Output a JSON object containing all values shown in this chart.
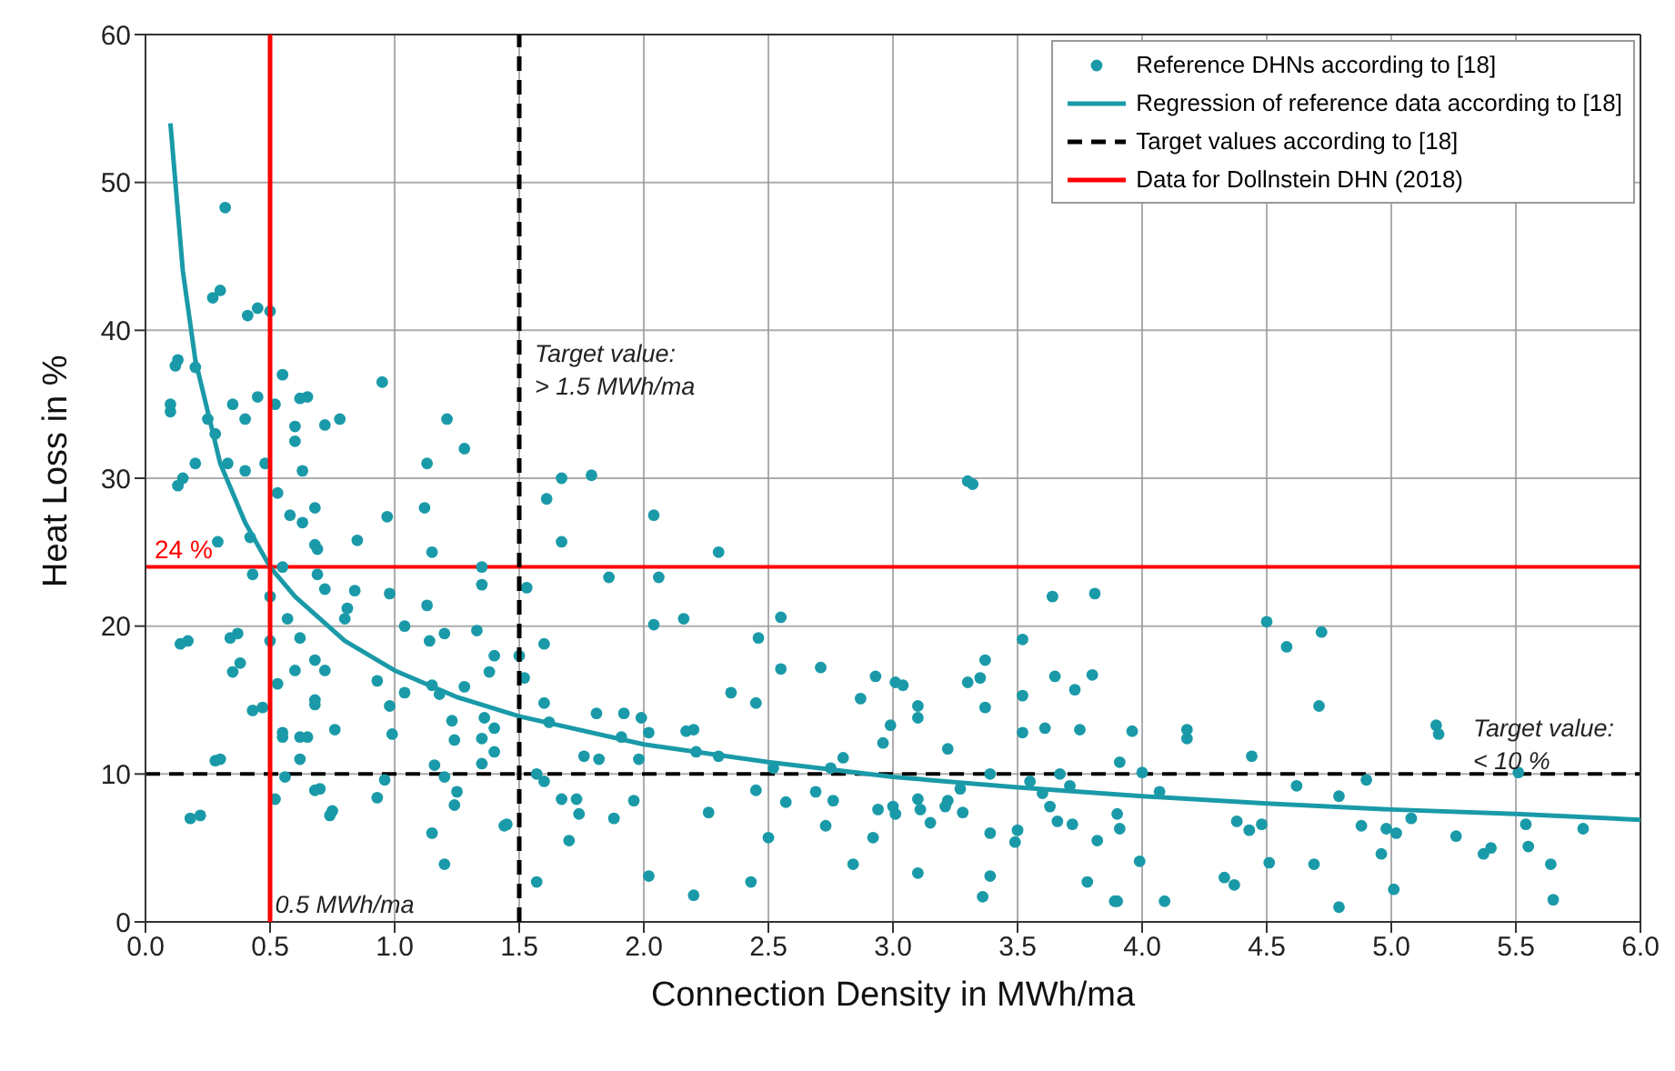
{
  "chart_data": {
    "type": "scatter",
    "xlabel": "Connection Density in MWh/ma",
    "ylabel": "Heat Loss in %",
    "xlim": [
      0,
      6
    ],
    "ylim": [
      0,
      60
    ],
    "xticks": [
      {
        "value": 0,
        "label": "0.0"
      },
      0.5,
      {
        "value": 1,
        "label": "1.0"
      },
      1.5,
      {
        "value": 2,
        "label": "2.0"
      },
      2.5,
      {
        "value": 3,
        "label": "3.0"
      },
      3.5,
      {
        "value": 4,
        "label": "4.0"
      },
      4.5,
      {
        "value": 5,
        "label": "5.0"
      },
      5.5,
      {
        "value": 6,
        "label": "6.0"
      }
    ],
    "yticks": [
      0,
      10,
      20,
      30,
      40,
      50,
      60
    ],
    "grid": true,
    "legend": "top right",
    "marker": "circle",
    "series": [
      {
        "name": "Reference DHNs according to [18]",
        "color": "#1a9aa8",
        "x": [
          0.1,
          0.1,
          0.13,
          0.15,
          0.17,
          0.2,
          0.2,
          0.22,
          0.25,
          0.28,
          0.3,
          0.3,
          0.32,
          0.33,
          0.35,
          0.37,
          0.38,
          0.4,
          0.4,
          0.42,
          0.43,
          0.45,
          0.45,
          0.47,
          0.48,
          0.5,
          0.5,
          0.5,
          0.52,
          0.53,
          0.55,
          0.55,
          0.55,
          0.52,
          0.57,
          0.58,
          0.6,
          0.6,
          0.62,
          0.63,
          0.63,
          0.65,
          0.65,
          0.68,
          0.68,
          0.7,
          0.72,
          0.72,
          0.75,
          0.78,
          0.8,
          0.95,
          1.21,
          1.28,
          1.13,
          1.12,
          0.97,
          1.15,
          0.85,
          1.35,
          1.67,
          1.61,
          1.67,
          1.53,
          1.6,
          1.5,
          1.52,
          1.6,
          1.62,
          1.57,
          1.6,
          1.67,
          1.7,
          1.57,
          1.45,
          1.35,
          1.13,
          0.98,
          0.84,
          0.81,
          1.04,
          1.14,
          1.2,
          1.33,
          0.93,
          1.04,
          1.15,
          1.28,
          1.38,
          1.4,
          0.98,
          1.18,
          1.23,
          1.36,
          1.24,
          0.99,
          1.35,
          1.4,
          1.4,
          1.16,
          1.2,
          1.35,
          0.96,
          0.93,
          1.25,
          1.24,
          1.15,
          1.2,
          1.44,
          0.55,
          0.68,
          0.56,
          0.68,
          0.74,
          0.18,
          0.28,
          0.43,
          0.34,
          0.14,
          0.35,
          0.53,
          0.62,
          0.68,
          0.76,
          0.62,
          0.72,
          0.62,
          0.6,
          0.68,
          0.69,
          0.69,
          0.29,
          0.13,
          0.41,
          0.27,
          0.12,
          1.79,
          2.04,
          2.3,
          1.86,
          2.06,
          2.04,
          2.16,
          2.46,
          2.55,
          2.55,
          2.71,
          2.35,
          2.45,
          2.87,
          2.93,
          3.01,
          3.04,
          3.3,
          3.35,
          3.37,
          3.3,
          3.32,
          3.52,
          3.64,
          3.81,
          3.65,
          3.73,
          3.8,
          3.52,
          3.37,
          3.1,
          3.1,
          2.99,
          2.96,
          2.8,
          2.75,
          3.22,
          3.52,
          3.61,
          3.75,
          3.67,
          3.39,
          1.81,
          1.92,
          1.99,
          2.02,
          1.91,
          1.76,
          1.82,
          1.98,
          2.17,
          2.2,
          2.21,
          2.3,
          2.52,
          1.73,
          1.74,
          1.88,
          1.96,
          2.26,
          2.45,
          2.57,
          2.69,
          2.73,
          2.76,
          2.5,
          2.84,
          2.92,
          2.94,
          3.0,
          3.01,
          3.1,
          3.11,
          3.15,
          3.21,
          3.22,
          3.28,
          3.27,
          3.39,
          3.49,
          3.5,
          3.6,
          3.63,
          3.66,
          3.72,
          3.71,
          3.55,
          3.82,
          2.02,
          2.2,
          2.43,
          3.1,
          3.36,
          3.39,
          3.78,
          3.89,
          4.5,
          4.58,
          4.72,
          4.71,
          3.96,
          4.18,
          4.18,
          3.91,
          4.44,
          5.18,
          5.19,
          4.0,
          5.51,
          4.07,
          4.62,
          4.79,
          4.9,
          3.9,
          3.91,
          4.38,
          4.43,
          4.48,
          4.88,
          4.98,
          5.02,
          5.08,
          5.26,
          5.37,
          5.4,
          5.54,
          5.55,
          5.77,
          3.99,
          4.33,
          4.37,
          4.51,
          4.69,
          4.96,
          5.01,
          3.9,
          4.09,
          4.79,
          5.64,
          5.65
        ],
        "values": [
          34.5,
          35,
          38,
          30,
          19,
          37.5,
          31,
          7.2,
          34,
          33,
          11,
          42.7,
          48.3,
          31,
          35,
          19.5,
          17.5,
          34,
          30.5,
          26,
          23.5,
          41.5,
          35.5,
          14.5,
          31,
          41.3,
          22,
          19,
          35,
          29,
          37,
          24,
          12.5,
          8.3,
          20.5,
          27.5,
          33.5,
          17,
          11,
          27,
          30.5,
          35.5,
          12.5,
          25.5,
          15,
          9,
          22.5,
          17,
          7.5,
          34,
          20.5,
          36.5,
          34,
          32,
          31,
          28,
          27.4,
          25,
          25.8,
          24,
          30,
          28.6,
          25.7,
          22.6,
          18.8,
          18,
          16.5,
          14.8,
          13.5,
          10,
          9.5,
          8.3,
          5.5,
          2.7,
          6.6,
          22.8,
          21.4,
          22.2,
          22.4,
          21.2,
          20,
          19,
          19.5,
          19.7,
          16.3,
          15.5,
          16,
          15.9,
          16.9,
          18,
          14.6,
          15.4,
          13.6,
          13.8,
          12.3,
          12.7,
          12.4,
          13.1,
          11.5,
          10.6,
          9.8,
          10.7,
          9.6,
          8.4,
          8.8,
          7.9,
          6,
          3.9,
          6.5,
          12.8,
          14.7,
          9.8,
          8.9,
          7.2,
          7,
          10.9,
          14.3,
          19.2,
          18.8,
          16.9,
          16.1,
          19.2,
          17.7,
          13,
          12.5,
          33.6,
          35.4,
          32.5,
          28,
          25.2,
          23.5,
          25.7,
          29.5,
          41,
          42.2,
          37.6,
          30.2,
          27.5,
          25,
          23.3,
          23.3,
          20.1,
          20.5,
          19.2,
          20.6,
          17.1,
          17.2,
          15.5,
          14.8,
          15.1,
          16.6,
          16.2,
          16,
          16.2,
          16.5,
          17.7,
          29.8,
          29.6,
          19.1,
          22,
          22.2,
          16.6,
          15.7,
          16.7,
          15.3,
          14.5,
          14.6,
          13.8,
          13.3,
          12.1,
          11.1,
          10.4,
          11.7,
          12.8,
          13.1,
          13,
          10,
          10,
          14.1,
          14.1,
          13.8,
          12.8,
          12.5,
          11.2,
          11,
          11,
          12.9,
          13,
          11.5,
          11.2,
          10.4,
          8.3,
          7.3,
          7,
          8.2,
          7.4,
          8.9,
          8.1,
          8.8,
          6.5,
          8.2,
          5.7,
          3.9,
          5.7,
          7.6,
          7.8,
          7.3,
          8.3,
          7.6,
          6.7,
          7.8,
          8.2,
          7.4,
          9,
          6,
          5.4,
          6.2,
          8.7,
          7.8,
          6.8,
          6.6,
          9.2,
          9.5,
          5.5,
          3.1,
          1.8,
          2.7,
          3.3,
          1.7,
          3.1,
          2.7,
          1.4,
          20.3,
          18.6,
          19.6,
          14.6,
          12.9,
          13,
          12.4,
          10.8,
          11.2,
          13.3,
          12.7,
          10.1,
          10.1,
          8.8,
          9.2,
          8.5,
          9.6,
          7.3,
          6.3,
          6.8,
          6.2,
          6.6,
          6.5,
          6.3,
          6,
          7,
          5.8,
          4.6,
          5,
          6.6,
          5.1,
          6.3,
          4.1,
          3,
          2.5,
          4,
          3.9,
          4.6,
          2.2,
          1.4,
          1.4,
          1,
          3.9,
          1.5
        ]
      },
      {
        "name": "Regression of reference data according to [18]",
        "type": "line",
        "color": "#1a9aa8",
        "marker": "none",
        "line_style": "solid",
        "x": [
          0.1,
          0.15,
          0.2,
          0.3,
          0.4,
          0.5,
          0.6,
          0.8,
          1.0,
          1.25,
          1.5,
          2,
          2.5,
          3,
          3.5,
          4,
          4.5,
          5,
          5.5,
          6
        ],
        "values": [
          54,
          44,
          38,
          31,
          27,
          24,
          22,
          19,
          17,
          15.2,
          13.9,
          12,
          10.8,
          9.8,
          9.1,
          8.5,
          8,
          7.6,
          7.3,
          6.9
        ]
      },
      {
        "name": "Target values according to [18]",
        "type": "line",
        "color": "#000000",
        "marker": "none",
        "line_style": "dashed",
        "x": [
          1.5,
          1.5
        ],
        "values": [
          0,
          60
        ]
      },
      {
        "name": "Data for Dollnstein DHN (2018)",
        "type": "line",
        "color": "#ff0000",
        "marker": "none",
        "line_style": "solid",
        "x": [
          0.5,
          0.5
        ],
        "values": [
          0,
          60
        ]
      }
    ],
    "ref_lines": [
      {
        "axis": "y",
        "value": 10,
        "color": "#000000",
        "line_style": "dashed"
      },
      {
        "axis": "y",
        "value": 24,
        "color": "#ff0000",
        "line_style": "solid",
        "label": "24 %"
      }
    ],
    "annotations": [
      "Target value:\n> 1.5 MWh/ma",
      "Target value:\n< 10 %",
      {
        "text": "0.5 MWh/ma",
        "x": 0.52,
        "y": 0.6
      }
    ]
  }
}
